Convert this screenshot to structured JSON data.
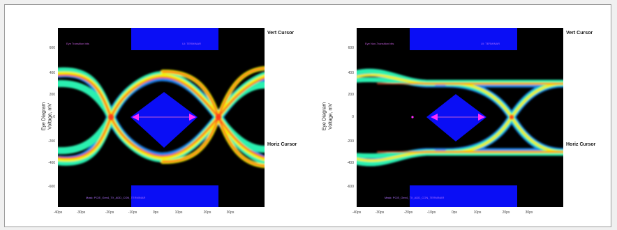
{
  "colors": {
    "plot_background": "#000000",
    "blue_panels": "#0a0ef5",
    "cursor_arrows": "#ff2cff",
    "overlay_text": "#c05cd8"
  },
  "left_chart": {
    "top_banner_left": "Eye Transition bits",
    "top_banner_right": "UI: TERMINAR",
    "bottom_banner": "Mask: PCIE_Gen4_TX_ADD_CON_TERMINAR",
    "ylabel_line1": "Eye Diagram",
    "ylabel_line2": "Voltage, mV",
    "vert_cursor_label": "Vert Cursor",
    "horiz_cursor_label": "Horiz Cursor",
    "y_ticks": [
      "600",
      "400",
      "200",
      "0",
      "-200",
      "-400",
      "-600"
    ],
    "x_ticks": [
      "-40ps",
      "-30ps",
      "-20ps",
      "-10ps",
      "0ps",
      "10ps",
      "20ps",
      "30ps"
    ]
  },
  "right_chart": {
    "top_banner_left": "Eye Non-Transition bits",
    "top_banner_right": "UI: TERMINAR",
    "bottom_banner": "Mask: PCIE_Gen4_TX_ADD_CON_TERMINAR",
    "ylabel_line1": "Eye Diagram",
    "ylabel_line2": "Voltage, mV",
    "vert_cursor_label": "Vert Cursor",
    "horiz_cursor_label": "Horiz Cursor",
    "y_ticks": [
      "600",
      "400",
      "200",
      "0",
      "-200",
      "-400",
      "-600"
    ],
    "x_ticks": [
      "-40ps",
      "-30ps",
      "-20ps",
      "-10ps",
      "0ps",
      "10ps",
      "20ps",
      "30ps"
    ]
  }
}
